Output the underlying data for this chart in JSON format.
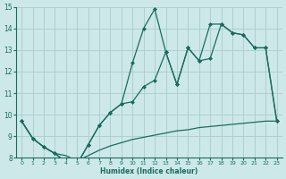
{
  "bg_color": "#cce8e8",
  "grid_color": "#b0d4d4",
  "line_color": "#1a6b5e",
  "xlabel": "Humidex (Indice chaleur)",
  "xlim": [
    -0.5,
    23.5
  ],
  "ylim": [
    8,
    15
  ],
  "xticks": [
    0,
    1,
    2,
    3,
    4,
    5,
    6,
    7,
    8,
    9,
    10,
    11,
    12,
    13,
    14,
    15,
    16,
    17,
    18,
    19,
    20,
    21,
    22,
    23
  ],
  "yticks": [
    8,
    9,
    10,
    11,
    12,
    13,
    14,
    15
  ],
  "curve_bottom_x": [
    0,
    1,
    2,
    3,
    4,
    5,
    6,
    7,
    8,
    9,
    10,
    11,
    12,
    13,
    14,
    15,
    16,
    17,
    18,
    19,
    20,
    21,
    22,
    23
  ],
  "curve_bottom_y": [
    9.7,
    8.9,
    8.5,
    8.2,
    8.1,
    7.85,
    8.1,
    8.35,
    8.55,
    8.7,
    8.85,
    8.95,
    9.05,
    9.15,
    9.25,
    9.3,
    9.4,
    9.45,
    9.5,
    9.55,
    9.6,
    9.65,
    9.7,
    9.7
  ],
  "curve_mid_x": [
    0,
    1,
    2,
    3,
    4,
    5,
    6,
    7,
    8,
    9,
    10,
    11,
    12,
    13,
    14,
    15,
    16,
    17,
    18,
    19,
    20,
    21,
    22,
    23
  ],
  "curve_mid_y": [
    9.7,
    8.9,
    8.5,
    8.2,
    7.8,
    7.7,
    8.6,
    9.5,
    10.1,
    10.5,
    10.6,
    11.3,
    11.6,
    12.9,
    11.4,
    13.1,
    12.5,
    12.6,
    14.2,
    13.8,
    13.7,
    13.1,
    13.1,
    9.7
  ],
  "curve_top_x": [
    0,
    1,
    2,
    3,
    4,
    5,
    6,
    7,
    8,
    9,
    10,
    11,
    12,
    13,
    14,
    15,
    16,
    17,
    18,
    19,
    20,
    21,
    22,
    23
  ],
  "curve_top_y": [
    9.7,
    8.9,
    8.5,
    8.2,
    7.8,
    7.7,
    8.6,
    9.5,
    10.1,
    10.5,
    12.4,
    14.0,
    14.9,
    12.9,
    11.4,
    13.1,
    12.5,
    14.2,
    14.2,
    13.8,
    13.7,
    13.1,
    13.1,
    9.7
  ]
}
